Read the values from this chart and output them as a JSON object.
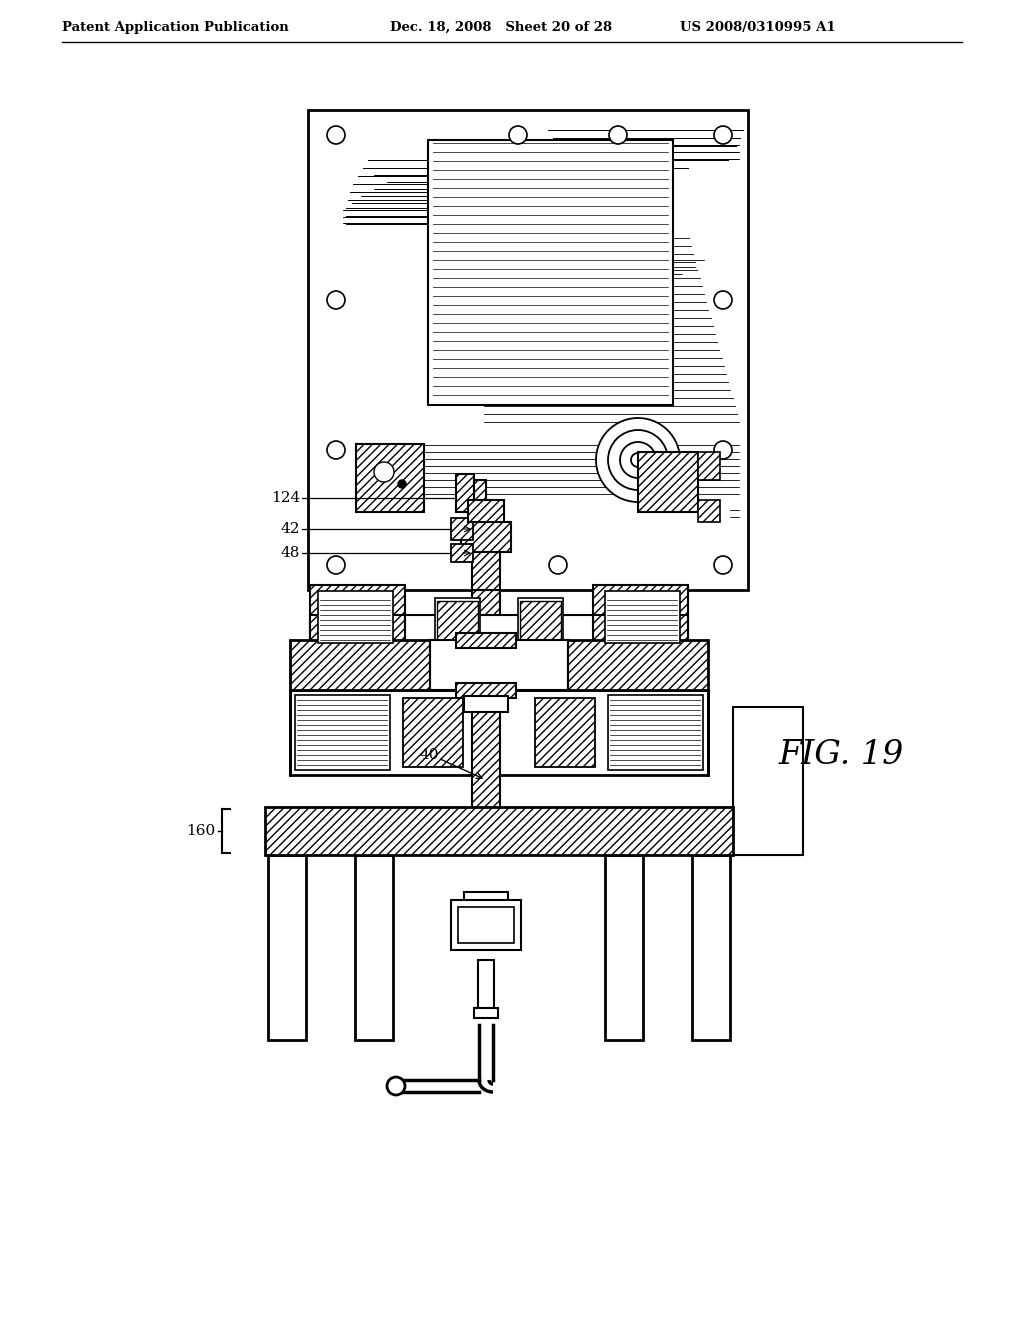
{
  "bg_color": "#ffffff",
  "header_left": "Patent Application Publication",
  "header_mid": "Dec. 18, 2008   Sheet 20 of 28",
  "header_right": "US 2008/0310995 A1",
  "fig_label": "FIG. 19",
  "label_124": "124",
  "label_42": "42",
  "label_48": "48",
  "label_40": "40",
  "label_160": "160"
}
